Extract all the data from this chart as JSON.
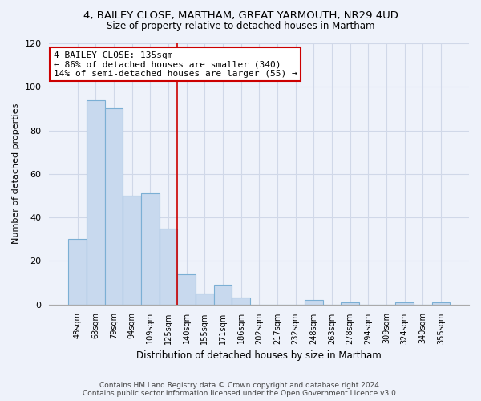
{
  "title": "4, BAILEY CLOSE, MARTHAM, GREAT YARMOUTH, NR29 4UD",
  "subtitle": "Size of property relative to detached houses in Martham",
  "xlabel": "Distribution of detached houses by size in Martham",
  "ylabel": "Number of detached properties",
  "categories": [
    "48sqm",
    "63sqm",
    "79sqm",
    "94sqm",
    "109sqm",
    "125sqm",
    "140sqm",
    "155sqm",
    "171sqm",
    "186sqm",
    "202sqm",
    "217sqm",
    "232sqm",
    "248sqm",
    "263sqm",
    "278sqm",
    "294sqm",
    "309sqm",
    "324sqm",
    "340sqm",
    "355sqm"
  ],
  "values": [
    30,
    94,
    90,
    50,
    51,
    35,
    14,
    5,
    9,
    3,
    0,
    0,
    0,
    2,
    0,
    1,
    0,
    0,
    1,
    0,
    1
  ],
  "bar_color": "#c8d9ee",
  "bar_edge_color": "#7bafd4",
  "marker_line_color": "#cc0000",
  "annotation_title": "4 BAILEY CLOSE: 135sqm",
  "annotation_line1": "← 86% of detached houses are smaller (340)",
  "annotation_line2": "14% of semi-detached houses are larger (55) →",
  "annotation_box_edge_color": "#cc0000",
  "ylim": [
    0,
    120
  ],
  "yticks": [
    0,
    20,
    40,
    60,
    80,
    100,
    120
  ],
  "footer_line1": "Contains HM Land Registry data © Crown copyright and database right 2024.",
  "footer_line2": "Contains public sector information licensed under the Open Government Licence v3.0.",
  "bg_color": "#eef2fa",
  "plot_bg_color": "#eef2fa",
  "grid_color": "#d0d8e8"
}
